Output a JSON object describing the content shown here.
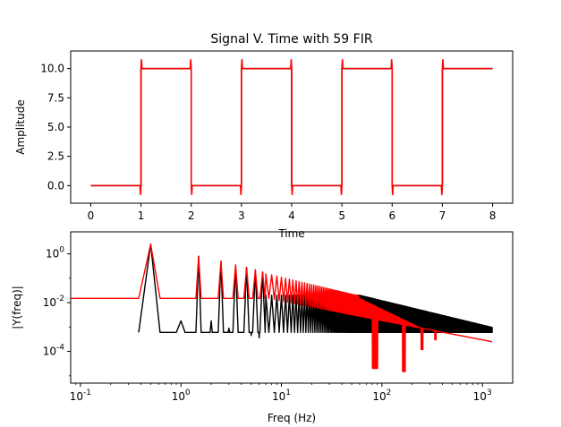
{
  "figure": {
    "background": "#ffffff"
  },
  "chart_data": [
    {
      "type": "line",
      "title": "Signal V. Time with 59 FIR",
      "xlabel": "Time",
      "ylabel": "Amplitude",
      "xlim": [
        -0.4,
        8.4
      ],
      "ylim": [
        -1.5,
        11.5
      ],
      "xticks": [
        0,
        1,
        2,
        3,
        4,
        5,
        6,
        7,
        8
      ],
      "xtick_labels": [
        "0",
        "1",
        "2",
        "3",
        "4",
        "5",
        "6",
        "7",
        "8"
      ],
      "yticks": [
        0.0,
        2.5,
        5.0,
        7.5,
        10.0
      ],
      "ytick_labels": [
        "0.0",
        "2.5",
        "5.0",
        "7.5",
        "10.0"
      ],
      "grid": false,
      "series": [
        {
          "color": "#000000",
          "description": "square wave, period 2, 0 to 10",
          "x": [
            0,
            1,
            1,
            2,
            2,
            3,
            3,
            4,
            4,
            5,
            5,
            6,
            6,
            7,
            7,
            8
          ],
          "y": [
            0,
            0,
            10,
            10,
            0,
            0,
            10,
            10,
            0,
            0,
            10,
            10,
            0,
            0,
            10,
            10
          ]
        },
        {
          "color": "#ff0000",
          "description": "filtered square wave with ringing at edges",
          "base_x": [
            0,
            1,
            1,
            2,
            2,
            3,
            3,
            4,
            4,
            5,
            5,
            6,
            6,
            7,
            7,
            8
          ],
          "base_y": [
            0,
            0,
            10,
            10,
            0,
            0,
            10,
            10,
            0,
            0,
            10,
            10,
            0,
            0,
            10,
            10
          ],
          "overshoot_max": 10.8,
          "undershoot_min": -0.8
        }
      ]
    },
    {
      "type": "line",
      "xlabel": "Freq (Hz)",
      "ylabel": "|Y(freq)|",
      "xscale": "log",
      "yscale": "log",
      "xlim": [
        0.08,
        2000
      ],
      "ylim": [
        5e-06,
        8
      ],
      "xticks": [
        0.1,
        1,
        10,
        100,
        1000
      ],
      "xtick_labels": [
        "10^-1",
        "10^0",
        "10^1",
        "10^2",
        "10^3"
      ],
      "yticks": [
        0.0001,
        0.01,
        1
      ],
      "ytick_labels": [
        "10^-4",
        "10^-2",
        "10^0"
      ],
      "grid": false,
      "series": [
        {
          "color": "#000000",
          "description": "spectrum of square wave",
          "fundamental": 0.5,
          "peak": 2.5,
          "floor": 0.0006,
          "harmonic_peaks_at": [
            1.5,
            2.5,
            3.5,
            4.5,
            5.5,
            6.5
          ],
          "harmonic_peaks": [
            0.8,
            0.5,
            0.35,
            0.28,
            0.22,
            0.18
          ],
          "dense_band_from": 7,
          "dense_band_to": 1250,
          "dense_band_range": [
            0.0006,
            0.02
          ]
        },
        {
          "color": "#ff0000",
          "description": "spectrum of filtered signal",
          "fundamental": 0.5,
          "peak": 2.5,
          "floor_low": 0.015,
          "harmonic_peaks_at": [
            1.5,
            2.5,
            3.5,
            4.5,
            5.5,
            6.5
          ],
          "harmonic_peaks": [
            0.8,
            0.5,
            0.35,
            0.28,
            0.22,
            0.18
          ],
          "notches_at": [
            85,
            165,
            250,
            340
          ],
          "notch_depths": [
            2e-05,
            1.5e-05,
            0.00012,
            0.0003
          ],
          "tail_end": 0.00025
        }
      ]
    }
  ]
}
